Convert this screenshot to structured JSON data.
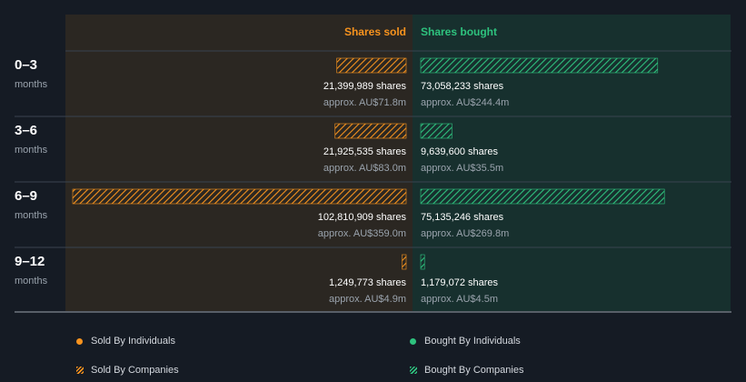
{
  "chart_data": {
    "type": "bar",
    "columns": {
      "sold": "Shares sold",
      "bought": "Shares bought"
    },
    "unit_label": "months",
    "categories": [
      "0–3",
      "3–6",
      "6–9",
      "9–12"
    ],
    "series": [
      {
        "name": "Shares sold",
        "values": [
          21399989,
          21925535,
          102810909,
          1249773
        ],
        "value_labels": [
          "21,399,989 shares",
          "21,925,535 shares",
          "102,810,909 shares",
          "1,249,773 shares"
        ],
        "approx_labels": [
          "approx. AU$71.8m",
          "approx. AU$83.0m",
          "approx. AU$359.0m",
          "approx. AU$4.9m"
        ]
      },
      {
        "name": "Shares bought",
        "values": [
          73058233,
          9639600,
          75135246,
          1179072
        ],
        "value_labels": [
          "73,058,233 shares",
          "9,639,600 shares",
          "75,135,246 shares",
          "1,179,072 shares"
        ],
        "approx_labels": [
          "approx. AU$244.4m",
          "approx. AU$35.5m",
          "approx. AU$269.8m",
          "approx. AU$4.5m"
        ]
      }
    ],
    "legend": [
      "Sold By Individuals",
      "Bought By Individuals",
      "Sold By Companies",
      "Bought By Companies"
    ]
  },
  "colors": {
    "sold": "#f7931e",
    "bought": "#2ec27e",
    "sold_panel": "#2b2722",
    "bought_panel": "#17302e"
  }
}
